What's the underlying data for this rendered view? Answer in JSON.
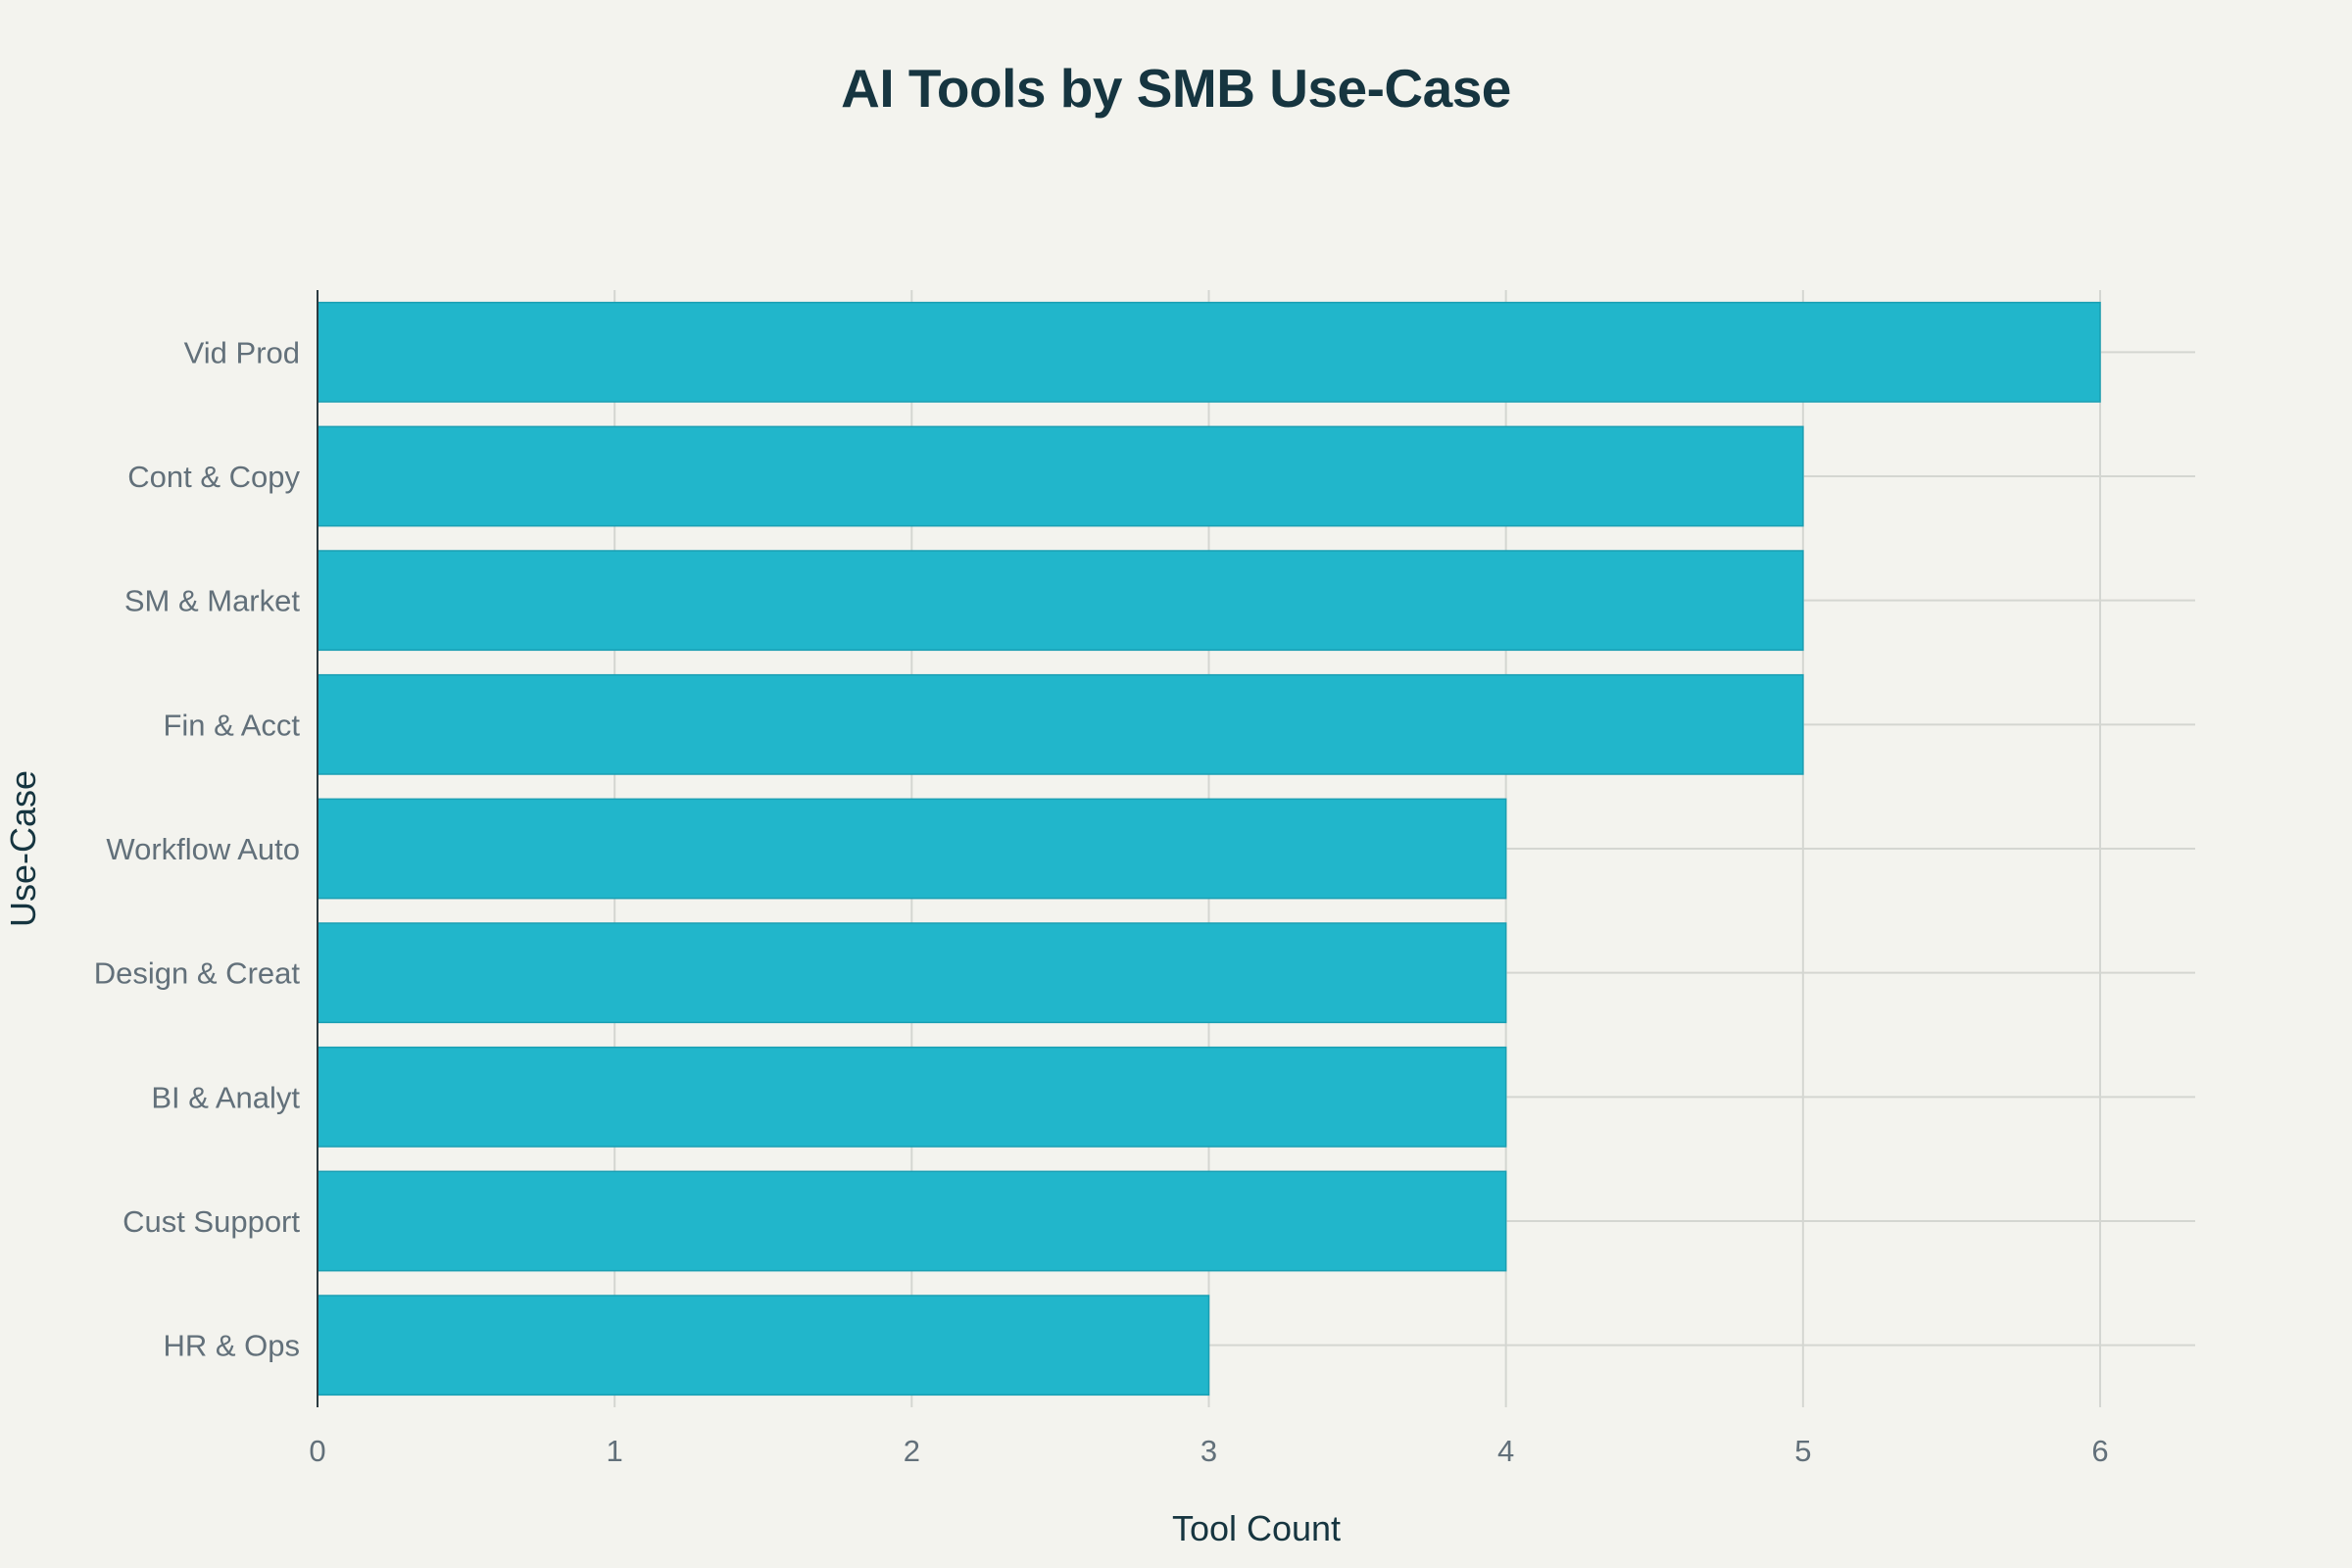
{
  "chart_data": {
    "type": "bar",
    "orientation": "horizontal",
    "title": "AI Tools by SMB Use-Case",
    "xlabel": "Tool Count",
    "ylabel": "Use-Case",
    "categories": [
      "Vid Prod",
      "Cont & Copy",
      "SM & Market",
      "Fin & Acct",
      "Workflow Auto",
      "Design & Creat",
      "BI & Analyt",
      "Cust Support",
      "HR & Ops"
    ],
    "values": [
      6,
      5,
      5,
      5,
      4,
      4,
      4,
      4,
      3
    ],
    "xlim": [
      0,
      6.32
    ],
    "xticks": [
      0,
      1,
      2,
      3,
      4,
      5,
      6
    ],
    "grid": true,
    "bar_color": "#21b6cb",
    "background_color": "#f3f3ee"
  }
}
